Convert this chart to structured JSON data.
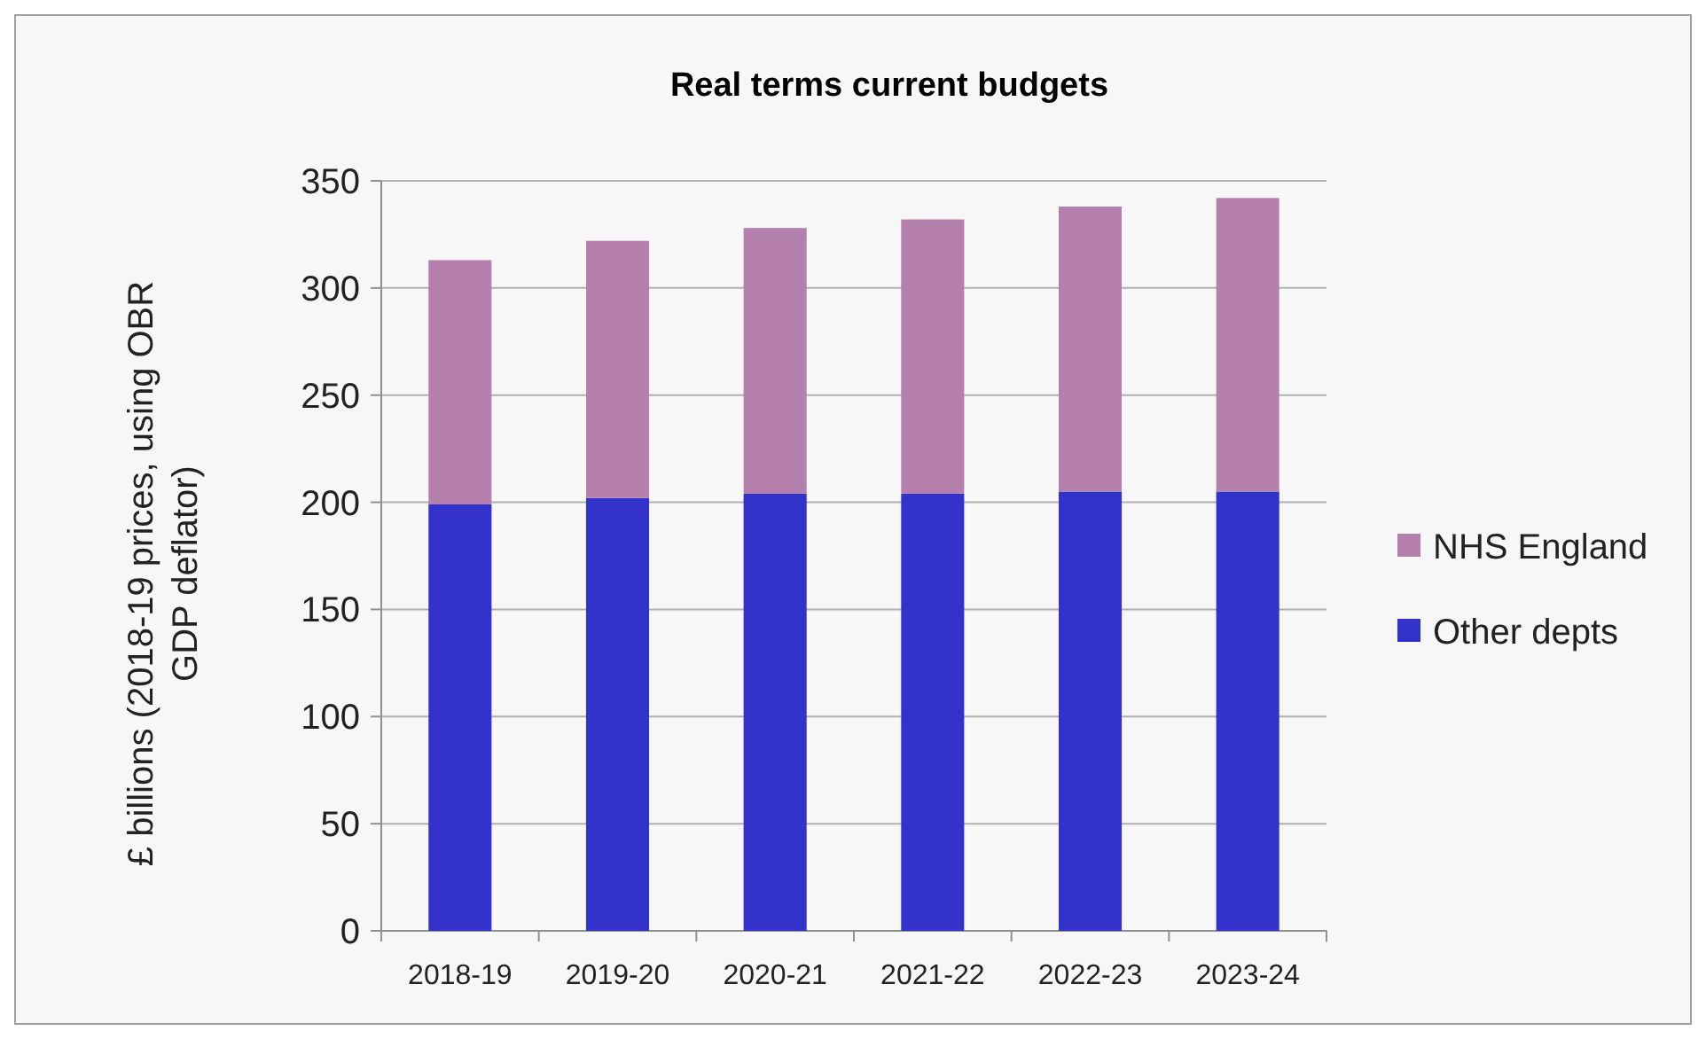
{
  "chart_data": {
    "type": "bar",
    "title": "Real terms current budgets",
    "ylabel": "£ billions (2018-19 prices, using OBR GDP deflator)",
    "categories": [
      "2018-19",
      "2019-20",
      "2020-21",
      "2021-22",
      "2022-23",
      "2023-24"
    ],
    "stacked": true,
    "series": [
      {
        "name": "Other depts",
        "color": "#3333cc",
        "values": [
          199,
          202,
          204,
          204,
          205,
          205
        ]
      },
      {
        "name": "NHS England",
        "color": "#b57fae",
        "values": [
          114,
          120,
          124,
          128,
          133,
          137
        ]
      }
    ],
    "ylim": [
      0,
      350
    ],
    "yticks": [
      0,
      50,
      100,
      150,
      200,
      250,
      300,
      350
    ],
    "grid": "y",
    "legend": "right"
  }
}
